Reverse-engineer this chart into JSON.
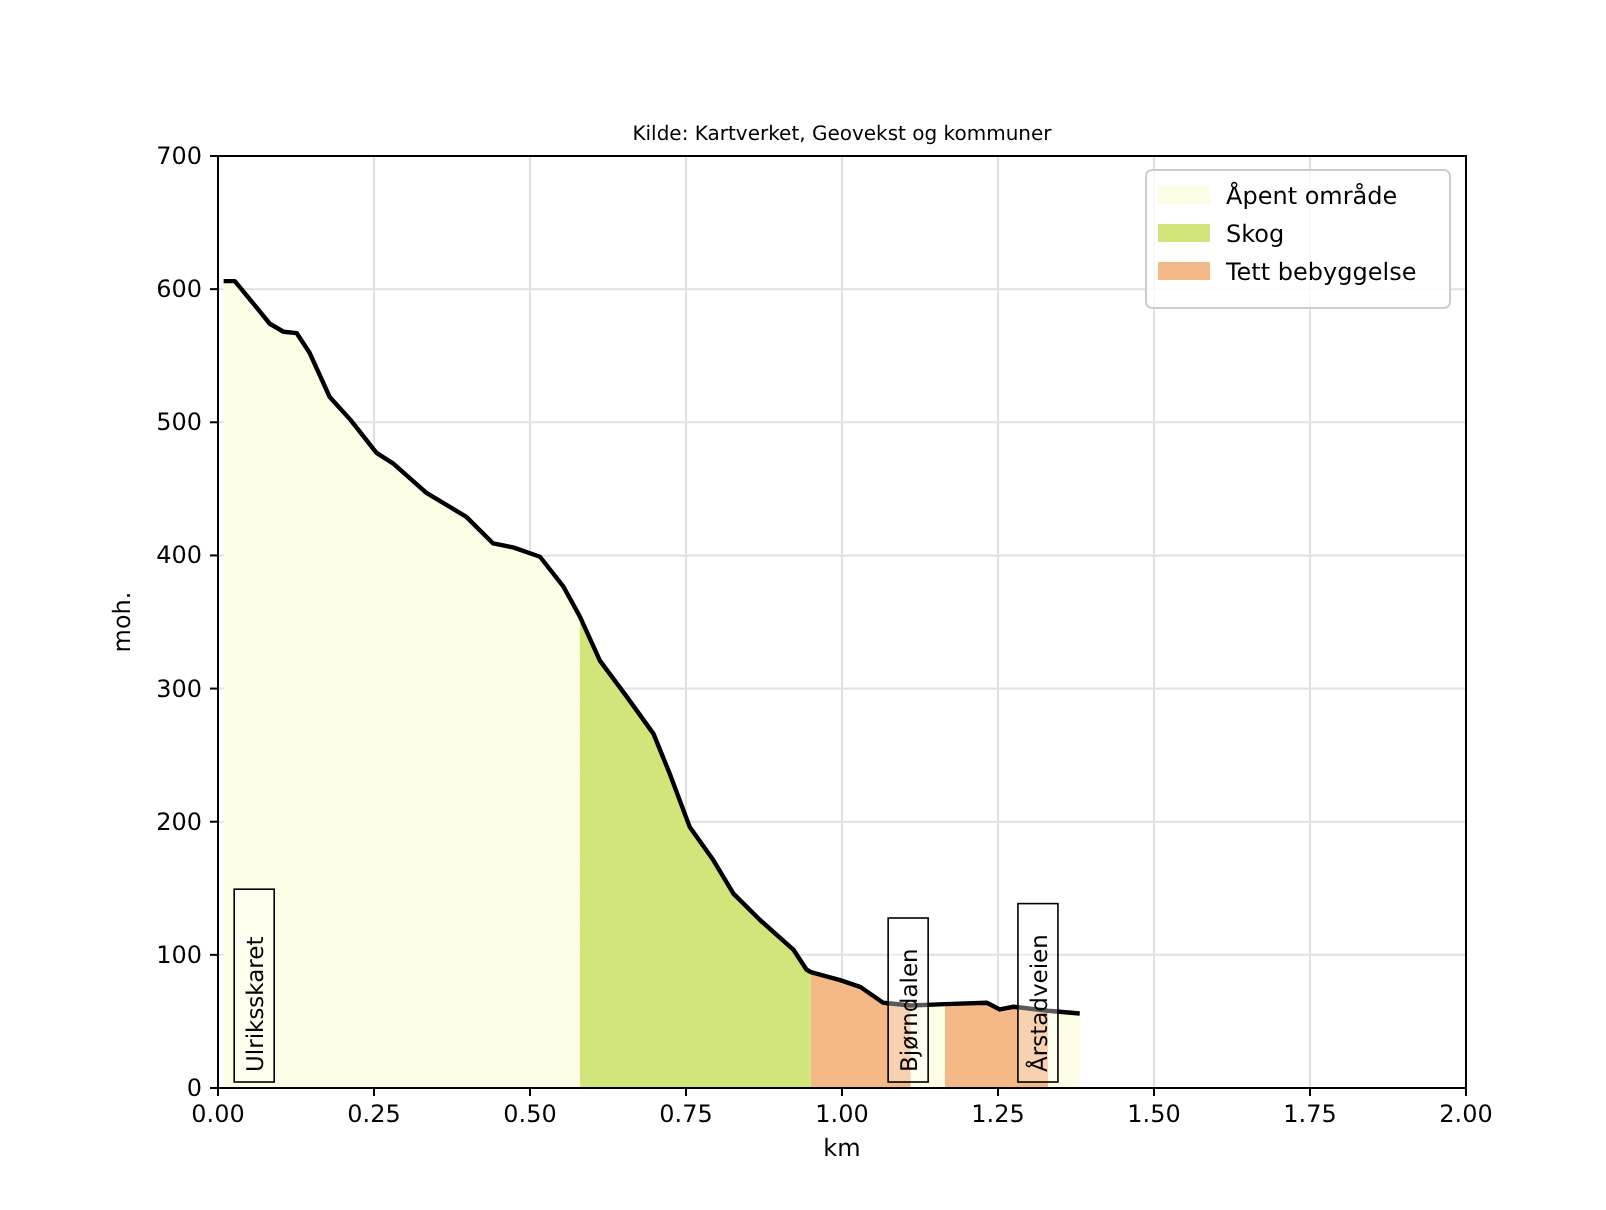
{
  "chart_data": {
    "type": "area",
    "title": "Kilde: Kartverket, Geovekst og kommuner",
    "xlabel": "km",
    "ylabel": "moh.",
    "xlim": [
      0,
      2
    ],
    "xticks": [
      {
        "value": 0,
        "label": "0.00"
      },
      {
        "value": 0.25,
        "label": "0.25"
      },
      {
        "value": 0.5,
        "label": "0.50"
      },
      {
        "value": 0.75,
        "label": "0.75"
      },
      {
        "value": 1,
        "label": "1.00"
      },
      {
        "value": 1.25,
        "label": "1.25"
      },
      {
        "value": 1.5,
        "label": "1.50"
      },
      {
        "value": 1.75,
        "label": "1.75"
      },
      {
        "value": 2,
        "label": "2.00"
      }
    ],
    "ylim": [
      0,
      700
    ],
    "yticks": [
      0,
      100,
      200,
      300,
      400,
      500,
      600,
      700
    ],
    "grid": true,
    "legend": "top right",
    "series": [
      {
        "name": "Åpent område",
        "color": "#fdfde6",
        "x": [
          0.009,
          0.027,
          0.057,
          0.083,
          0.105,
          0.126,
          0.147,
          0.179,
          0.212,
          0.254,
          0.281,
          0.334,
          0.398,
          0.441,
          0.473,
          0.516,
          0.553,
          0.58,
          0.8,
          1.11,
          1.165,
          1.25,
          1.33,
          1.381
        ],
        "values": [
          606,
          606,
          589,
          574,
          568,
          567,
          552,
          519,
          502,
          477,
          469,
          447,
          429,
          409,
          406,
          399,
          377,
          354,
          null,
          62,
          63,
          null,
          58,
          56
        ]
      },
      {
        "name": "Skog",
        "color": "#d2e57a",
        "x": [
          0.58,
          0.612,
          0.655,
          0.698,
          0.724,
          0.756,
          0.794,
          0.826,
          0.869,
          0.922,
          0.943,
          0.95
        ],
        "values": [
          354,
          321,
          294,
          266,
          236,
          196,
          171,
          146,
          126,
          104,
          89,
          87
        ]
      },
      {
        "name": "Tett bebyggelse",
        "color": "#f5b887",
        "x": [
          0.95,
          0.997,
          1.029,
          1.066,
          1.11,
          1.14,
          1.165,
          1.232,
          1.253,
          1.275,
          1.33
        ],
        "values": [
          87,
          81,
          76,
          64,
          62,
          null,
          63,
          64,
          59,
          61,
          58
        ]
      },
      {
        "type": "line",
        "color": "#000000",
        "x": [
          0.009,
          0.027,
          0.057,
          0.083,
          0.105,
          0.126,
          0.147,
          0.179,
          0.212,
          0.254,
          0.281,
          0.334,
          0.398,
          0.441,
          0.473,
          0.516,
          0.553,
          0.58,
          0.612,
          0.655,
          0.698,
          0.724,
          0.756,
          0.794,
          0.826,
          0.869,
          0.922,
          0.943,
          0.95,
          0.997,
          1.029,
          1.066,
          1.11,
          1.165,
          1.232,
          1.253,
          1.275,
          1.33,
          1.381
        ],
        "values": [
          606,
          606,
          589,
          574,
          568,
          567,
          552,
          519,
          502,
          477,
          469,
          447,
          429,
          409,
          406,
          399,
          377,
          354,
          321,
          294,
          266,
          236,
          196,
          171,
          146,
          126,
          104,
          89,
          87,
          81,
          76,
          64,
          62,
          63,
          64,
          59,
          61,
          58,
          56
        ]
      }
    ],
    "annotations": [
      {
        "text": "Ulriksskaret",
        "x": 0.058,
        "y": 0
      },
      {
        "text": "Bjørndalen",
        "x": 1.106,
        "y": 0
      },
      {
        "text": "Årstadveien",
        "x": 1.314,
        "y": 0
      }
    ]
  }
}
